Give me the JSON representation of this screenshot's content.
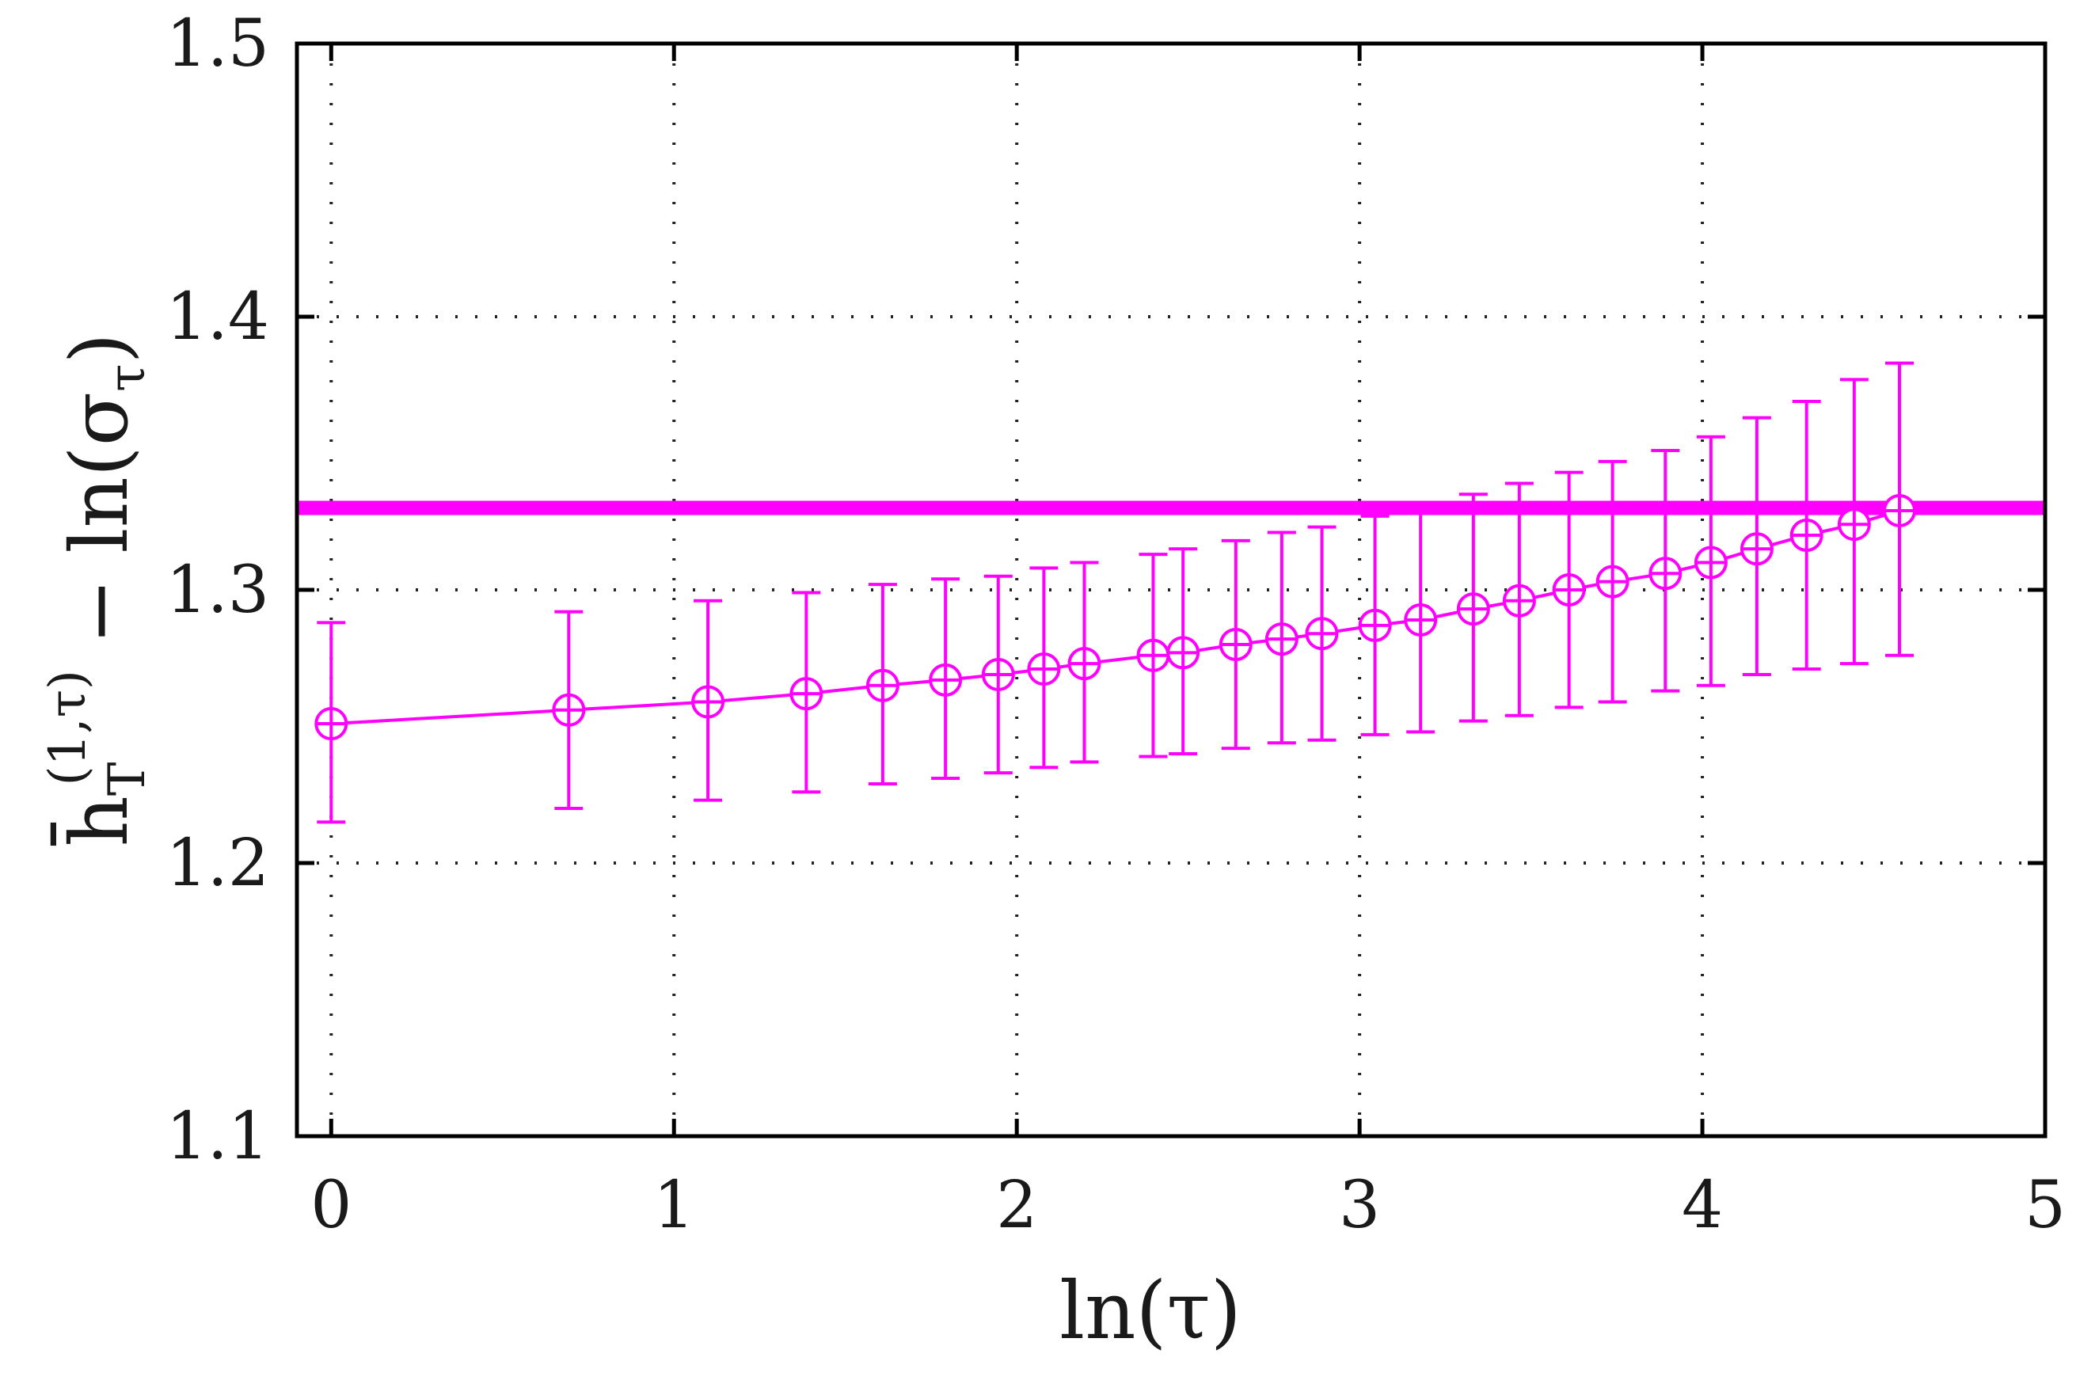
{
  "chart_data": {
    "type": "line",
    "title": "",
    "xlabel": "ln(τ)",
    "ylabel_parts": {
      "base": "h̄",
      "subscript": "T",
      "superscript": "(1,τ)",
      "rest": " − ln(σ",
      "rest_subscript": "τ",
      "close": ")"
    },
    "xlim": [
      -0.1,
      5
    ],
    "ylim": [
      1.1,
      1.5
    ],
    "x_ticks": [
      0,
      1,
      2,
      3,
      4,
      5
    ],
    "x_tick_labels": [
      "0",
      "1",
      "2",
      "3",
      "4",
      "5"
    ],
    "y_ticks": [
      1.1,
      1.2,
      1.3,
      1.4,
      1.5
    ],
    "y_tick_labels": [
      "1.1",
      "1.2",
      "1.3",
      "1.4",
      "1.5"
    ],
    "grid": "dotted",
    "colors": {
      "series": "#ff00ff",
      "reference": "#ff00ff",
      "grid": "#222222",
      "axes": "#000000"
    },
    "reference_line": {
      "y": 1.33
    },
    "series": [
      {
        "marker": "circle-plus",
        "x": [
          0,
          0.693,
          1.099,
          1.386,
          1.609,
          1.792,
          1.946,
          2.079,
          2.197,
          2.398,
          2.485,
          2.639,
          2.773,
          2.89,
          3.045,
          3.178,
          3.332,
          3.466,
          3.611,
          3.738,
          3.892,
          4.025,
          4.159,
          4.304,
          4.443,
          4.575
        ],
        "y": [
          1.251,
          1.256,
          1.259,
          1.262,
          1.265,
          1.267,
          1.269,
          1.271,
          1.273,
          1.276,
          1.277,
          1.28,
          1.282,
          1.284,
          1.287,
          1.289,
          1.293,
          1.296,
          1.3,
          1.303,
          1.306,
          1.31,
          1.315,
          1.32,
          1.324,
          1.329
        ],
        "err_low": [
          1.215,
          1.22,
          1.223,
          1.226,
          1.229,
          1.231,
          1.233,
          1.235,
          1.237,
          1.239,
          1.24,
          1.242,
          1.244,
          1.245,
          1.247,
          1.248,
          1.252,
          1.254,
          1.257,
          1.259,
          1.263,
          1.265,
          1.269,
          1.271,
          1.273,
          1.276
        ],
        "err_high": [
          1.288,
          1.292,
          1.296,
          1.299,
          1.302,
          1.304,
          1.305,
          1.308,
          1.31,
          1.313,
          1.315,
          1.318,
          1.321,
          1.323,
          1.327,
          1.331,
          1.335,
          1.339,
          1.343,
          1.347,
          1.351,
          1.356,
          1.363,
          1.369,
          1.377,
          1.383
        ]
      }
    ]
  }
}
